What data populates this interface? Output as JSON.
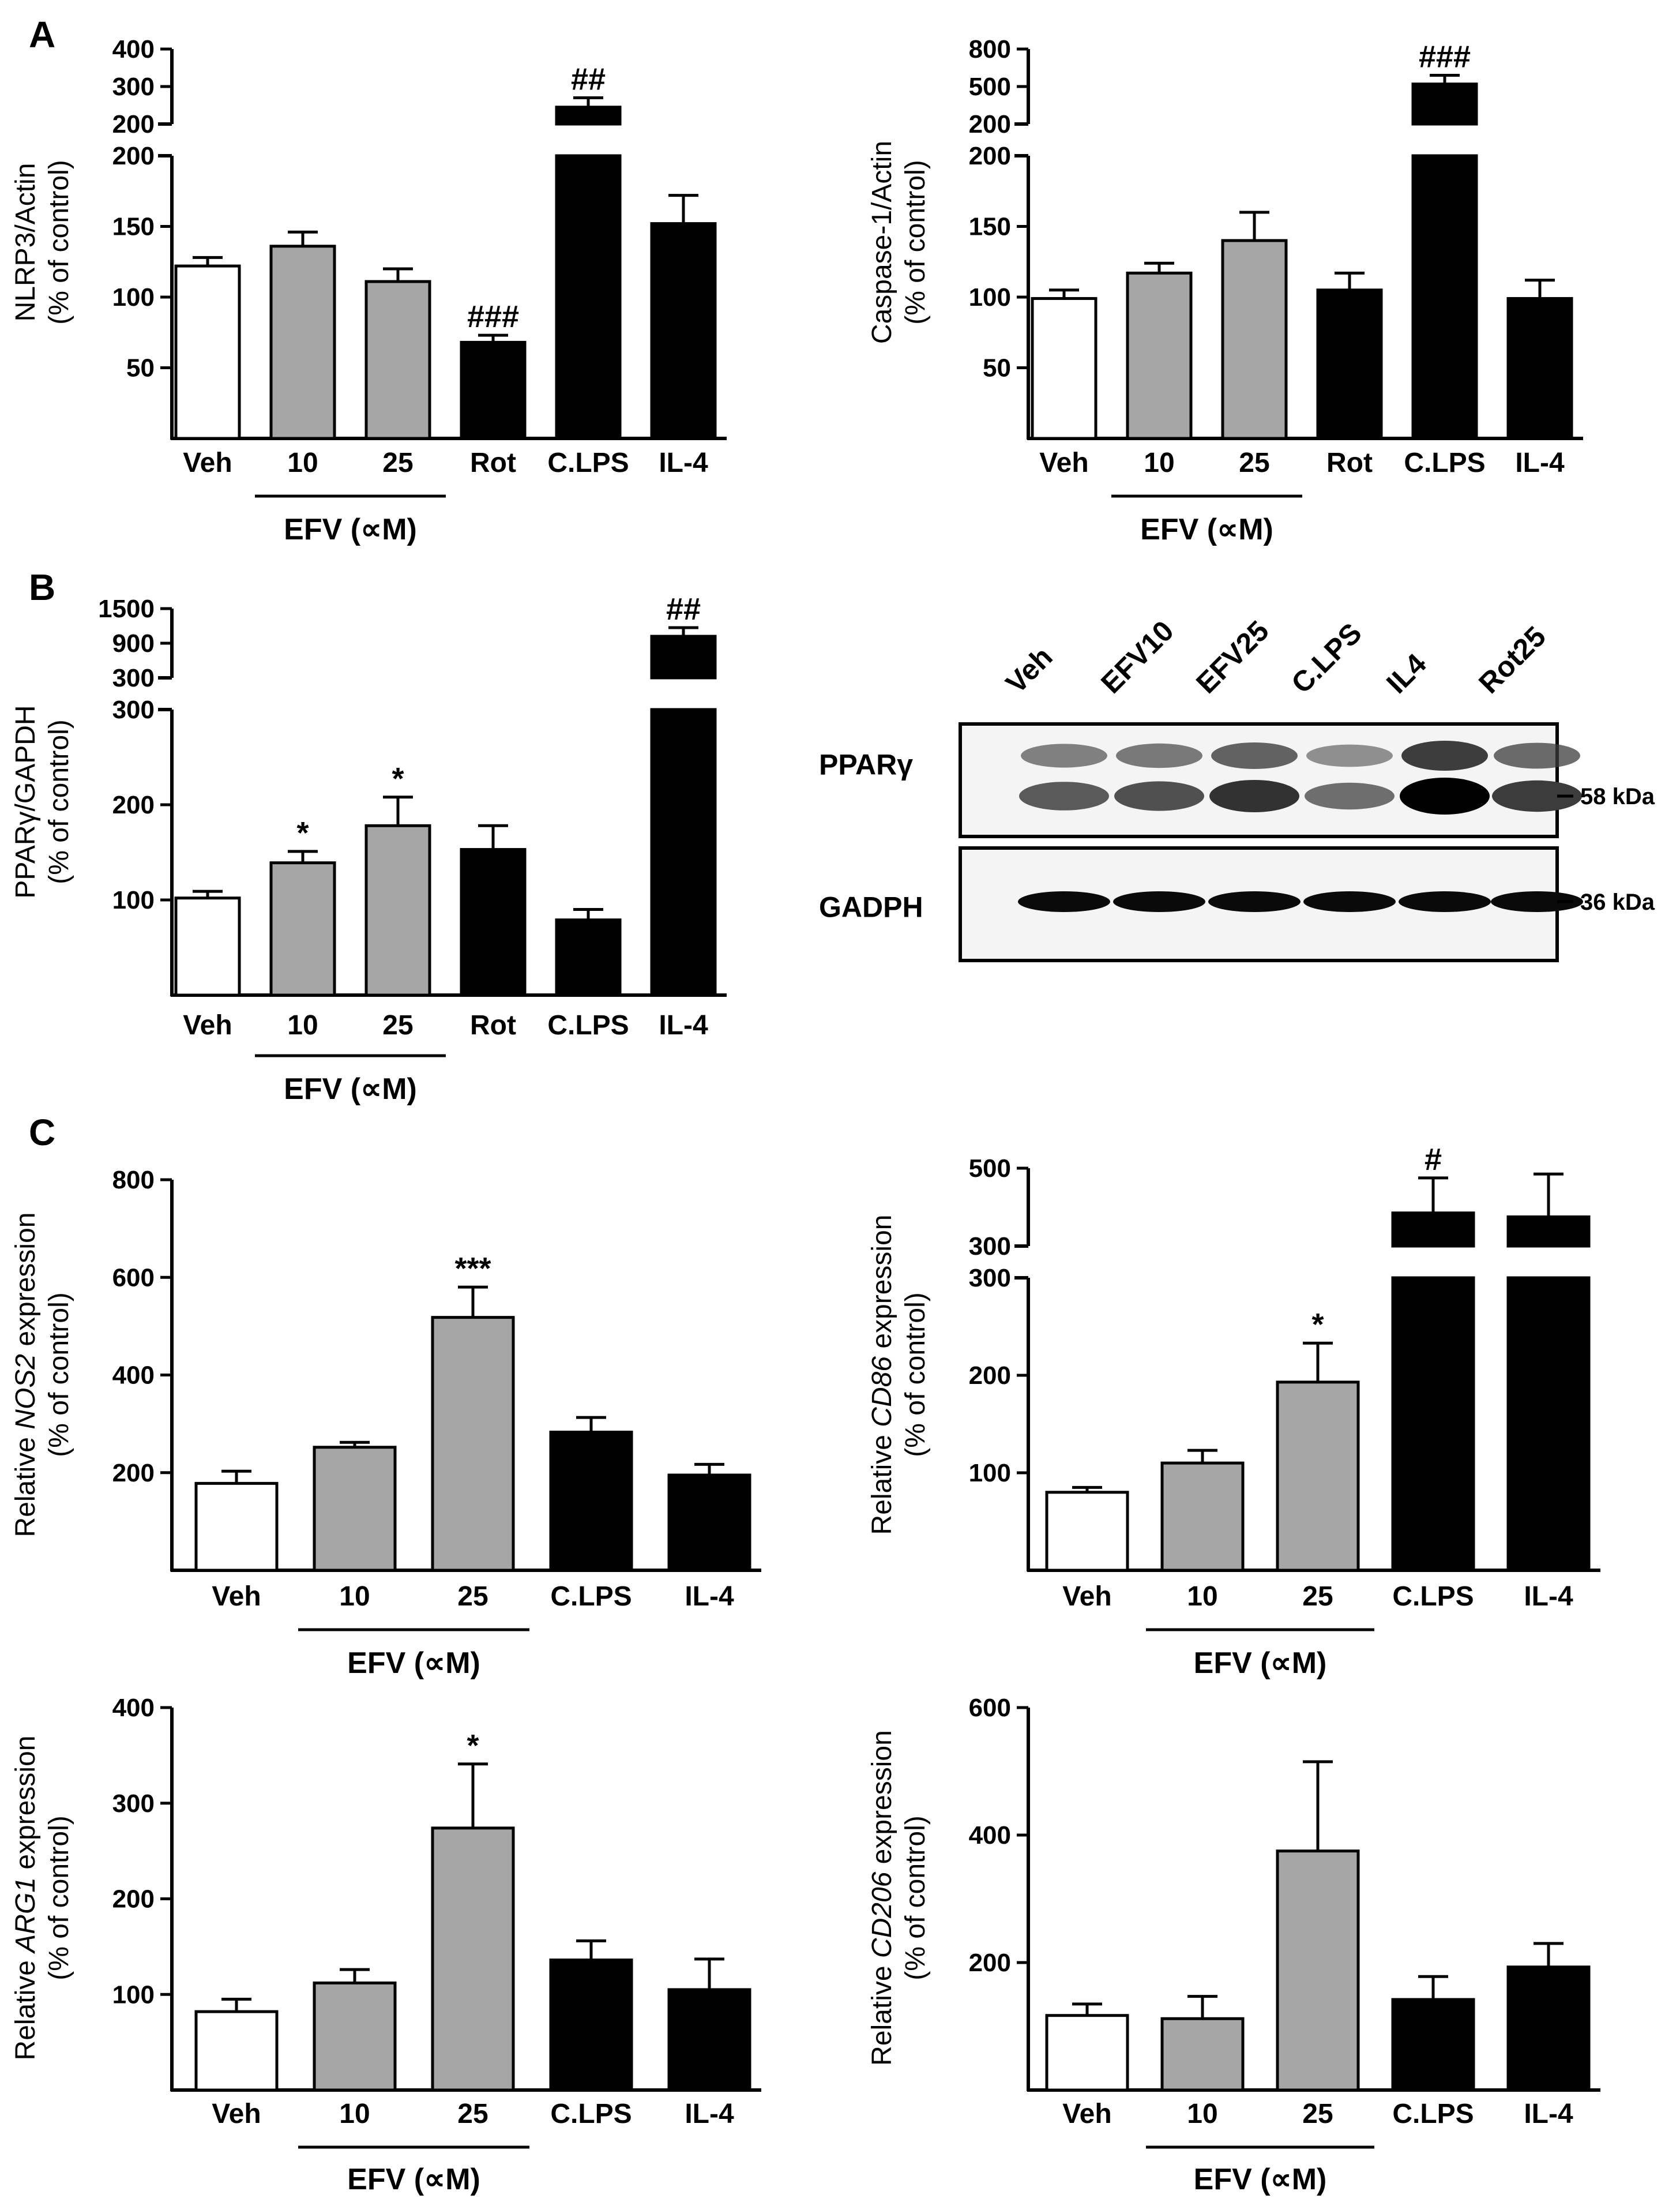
{
  "panels": [
    "A",
    "B",
    "C"
  ],
  "blot": {
    "lanes": [
      "Veh",
      "EFV10",
      "EFV25",
      "C.LPS",
      "IL4",
      "Rot25"
    ],
    "rows": [
      {
        "label": "PPARγ",
        "kda": "58 kDa",
        "intensity": [
          0.55,
          0.6,
          0.75,
          0.45,
          1.0,
          0.7
        ]
      },
      {
        "label": "GADPH",
        "kda": "36 kDa",
        "intensity": [
          0.95,
          0.95,
          0.95,
          0.95,
          0.95,
          0.95
        ]
      }
    ]
  },
  "chart_data": [
    {
      "id": "nlrp3",
      "panel": "A",
      "type": "bar",
      "ylabel": [
        "NLRP3/Actin",
        "(% of control)"
      ],
      "categories": [
        "Veh",
        "10",
        "25",
        "Rot",
        "C.LPS",
        "IL-4"
      ],
      "group_label": "EFV (∝M)",
      "group_span": [
        1,
        2
      ],
      "fills": [
        "#ffffff",
        "#a6a6a6",
        "#a6a6a6",
        "#000000",
        "#000000",
        "#000000"
      ],
      "values": [
        122,
        136,
        111,
        68,
        245,
        152
      ],
      "errors": [
        6,
        10,
        9,
        5,
        25,
        20
      ],
      "significance": [
        "",
        "",
        "",
        "###",
        "##",
        ""
      ],
      "lower_axis": {
        "ylim": [
          0,
          200
        ],
        "ticks": [
          "50",
          "100",
          "150",
          "200"
        ]
      },
      "upper_axis": {
        "ylim": [
          200,
          400
        ],
        "ticks": [
          "200",
          "300",
          "400"
        ]
      }
    },
    {
      "id": "casp1",
      "panel": "A",
      "type": "bar",
      "ylabel": [
        "Caspase-1/Actin",
        "(% of control)"
      ],
      "categories": [
        "Veh",
        "10",
        "25",
        "Rot",
        "C.LPS",
        "IL-4"
      ],
      "group_label": "EFV (∝M)",
      "group_span": [
        1,
        2
      ],
      "fills": [
        "#ffffff",
        "#a6a6a6",
        "#a6a6a6",
        "#000000",
        "#000000",
        "#000000"
      ],
      "values": [
        99,
        117,
        140,
        105,
        520,
        99
      ],
      "errors": [
        6,
        7,
        20,
        12,
        70,
        13
      ],
      "significance": [
        "",
        "",
        "",
        "",
        "###",
        ""
      ],
      "lower_axis": {
        "ylim": [
          0,
          200
        ],
        "ticks": [
          "50",
          "100",
          "150",
          "200"
        ]
      },
      "upper_axis": {
        "ylim": [
          200,
          800
        ],
        "ticks": [
          "200",
          "500",
          "800"
        ]
      }
    },
    {
      "id": "ppar",
      "panel": "B",
      "type": "bar",
      "ylabel": [
        "PPARγ/GAPDH",
        "(% of control)"
      ],
      "categories": [
        "Veh",
        "10",
        "25",
        "Rot",
        "C.LPS",
        "IL-4"
      ],
      "group_label": "EFV (∝M)",
      "group_span": [
        1,
        2
      ],
      "fills": [
        "#ffffff",
        "#a6a6a6",
        "#a6a6a6",
        "#000000",
        "#000000",
        "#000000"
      ],
      "values": [
        102,
        139,
        178,
        153,
        79,
        1020
      ],
      "errors": [
        7,
        12,
        30,
        25,
        11,
        150
      ],
      "significance": [
        "",
        "*",
        "*",
        "",
        "",
        "##"
      ],
      "lower_axis": {
        "ylim": [
          0,
          300
        ],
        "ticks": [
          "100",
          "200",
          "300"
        ]
      },
      "upper_axis": {
        "ylim": [
          300,
          1500
        ],
        "ticks": [
          "300",
          "900",
          "1500"
        ]
      }
    },
    {
      "id": "nos2",
      "panel": "C",
      "type": "bar",
      "ylabel_parts": [
        "Relative ",
        "NOS2",
        " expression"
      ],
      "ylabel2": "(% of control)",
      "categories": [
        "Veh",
        "10",
        "25",
        "C.LPS",
        "IL-4"
      ],
      "group_label": "EFV (∝M)",
      "group_span": [
        1,
        2
      ],
      "fills": [
        "#ffffff",
        "#a6a6a6",
        "#a6a6a6",
        "#000000",
        "#000000"
      ],
      "values": [
        178,
        252,
        518,
        283,
        195
      ],
      "errors": [
        25,
        10,
        62,
        30,
        22
      ],
      "significance": [
        "",
        "",
        "***",
        "",
        ""
      ],
      "ylim": [
        0,
        800
      ],
      "ticks": [
        "200",
        "400",
        "600",
        "800"
      ]
    },
    {
      "id": "cd86",
      "panel": "C",
      "type": "bar",
      "ylabel_parts": [
        "Relative ",
        "CD86",
        " expression"
      ],
      "ylabel2": "(% of control)",
      "categories": [
        "Veh",
        "10",
        "25",
        "C.LPS",
        "IL-4"
      ],
      "group_label": "EFV (∝M)",
      "group_span": [
        1,
        2
      ],
      "fills": [
        "#ffffff",
        "#a6a6a6",
        "#a6a6a6",
        "#000000",
        "#000000"
      ],
      "values": [
        80,
        110,
        193,
        385,
        375
      ],
      "errors": [
        5,
        13,
        40,
        90,
        110
      ],
      "significance": [
        "",
        "",
        "*",
        "#",
        ""
      ],
      "lower_axis": {
        "ylim": [
          0,
          300
        ],
        "ticks": [
          "100",
          "200",
          "300"
        ]
      },
      "upper_axis": {
        "ylim": [
          300,
          500
        ],
        "ticks": [
          "300",
          "500"
        ]
      }
    },
    {
      "id": "arg1",
      "panel": "C",
      "type": "bar",
      "ylabel_parts": [
        "Relative ",
        "ARG1",
        " expression"
      ],
      "ylabel2": "(% of control)",
      "categories": [
        "Veh",
        "10",
        "25",
        "C.LPS",
        "IL-4"
      ],
      "group_label": "EFV (∝M)",
      "group_span": [
        1,
        2
      ],
      "fills": [
        "#ffffff",
        "#a6a6a6",
        "#a6a6a6",
        "#000000",
        "#000000"
      ],
      "values": [
        82,
        112,
        274,
        136,
        105
      ],
      "errors": [
        13,
        14,
        67,
        20,
        32
      ],
      "significance": [
        "",
        "",
        "*",
        "",
        ""
      ],
      "ylim": [
        0,
        400
      ],
      "ticks": [
        "100",
        "200",
        "300",
        "400"
      ]
    },
    {
      "id": "cd206",
      "panel": "C",
      "type": "bar",
      "ylabel_parts": [
        "Relative ",
        "CD206",
        " expression"
      ],
      "ylabel2": "(% of control)",
      "categories": [
        "Veh",
        "10",
        "25",
        "C.LPS",
        "IL-4"
      ],
      "group_label": "EFV (∝M)",
      "group_span": [
        1,
        2
      ],
      "fills": [
        "#ffffff",
        "#a6a6a6",
        "#a6a6a6",
        "#000000",
        "#000000"
      ],
      "values": [
        117,
        112,
        375,
        142,
        193
      ],
      "errors": [
        18,
        35,
        140,
        36,
        37
      ],
      "significance": [
        "",
        "",
        "",
        "",
        ""
      ],
      "ylim": [
        0,
        600
      ],
      "ticks": [
        "200",
        "400",
        "600"
      ]
    }
  ]
}
